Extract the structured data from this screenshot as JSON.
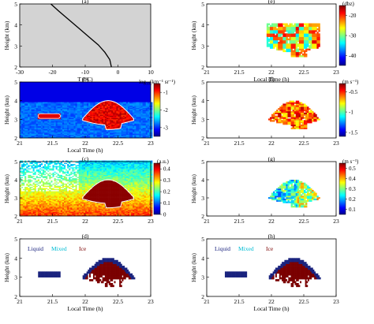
{
  "chart_data": [
    {
      "panel": "a",
      "label": "(a)",
      "type": "line",
      "xlabel": "T (°C)",
      "ylabel": "Height (km)",
      "xlim": [
        -30,
        10
      ],
      "ylim": [
        2,
        5
      ],
      "xticks": [
        "-30",
        "-20",
        "-10",
        "0",
        "10"
      ],
      "yticks": [
        "2",
        "3",
        "4",
        "5"
      ],
      "background": "#d3d3d3",
      "x": [
        -20.5,
        -18,
        -15,
        -12,
        -9,
        -6,
        -4,
        -2.5,
        -2
      ],
      "y": [
        5.0,
        4.65,
        4.25,
        3.85,
        3.45,
        3.05,
        2.7,
        2.35,
        2.0
      ]
    },
    {
      "panel": "b",
      "label": "(b)",
      "type": "heatmap",
      "xlabel": "Local Time (h)",
      "ylabel": "Height (km)",
      "xlim": [
        21,
        23
      ],
      "ylim": [
        2,
        5
      ],
      "xticks": [
        "21",
        "21.5",
        "22",
        "22.5",
        "23"
      ],
      "yticks": [
        "2",
        "3",
        "4",
        "5"
      ],
      "colorbar_title": "log₁₀(km⁻¹ sr⁻¹)",
      "colorbar_ticks": [
        "-1",
        "-2",
        "-3"
      ],
      "clim": [
        -3.5,
        -0.5
      ]
    },
    {
      "panel": "c",
      "label": "(c)",
      "type": "heatmap",
      "xlabel": "",
      "ylabel": "Height (km)",
      "xlim": [
        21,
        23
      ],
      "ylim": [
        2,
        5
      ],
      "xticks": [
        "21",
        "21.5",
        "22",
        "22.5",
        "23"
      ],
      "yticks": [
        "2",
        "3",
        "4",
        "5"
      ],
      "colorbar_title": "(a.u.)",
      "colorbar_ticks": [
        "0.4",
        "0.3",
        "0.2",
        "0.1",
        "0"
      ],
      "clim": [
        0,
        0.45
      ]
    },
    {
      "panel": "d",
      "label": "(d)",
      "type": "heatmap",
      "xlabel": "Local Time (h)",
      "ylabel": "Height (km)",
      "xlim": [
        21,
        23
      ],
      "ylim": [
        2,
        5
      ],
      "xticks": [
        "21",
        "21.5",
        "22",
        "22.5",
        "23"
      ],
      "yticks": [
        "2",
        "3",
        "4",
        "5"
      ],
      "categories": [
        {
          "name": "Liquid",
          "color": "#1a237e"
        },
        {
          "name": "Mixed",
          "color": "#00bcd4"
        },
        {
          "name": "Ice",
          "color": "#7b0000"
        }
      ]
    },
    {
      "panel": "e",
      "label": "(e)",
      "type": "heatmap",
      "xlabel": "Local Time (h)",
      "ylabel": "Height (km)",
      "xlim": [
        21,
        23
      ],
      "ylim": [
        2,
        5
      ],
      "xticks": [
        "21",
        "21.5",
        "22",
        "22.5",
        "23"
      ],
      "yticks": [
        "2",
        "3",
        "4",
        "5"
      ],
      "colorbar_title": "(dbz)",
      "colorbar_ticks": [
        "-20",
        "-30",
        "-40"
      ],
      "clim": [
        -45,
        -15
      ]
    },
    {
      "panel": "f",
      "label": "(f)",
      "type": "heatmap",
      "xlabel": "",
      "ylabel": "Height (km)",
      "xlim": [
        21,
        23
      ],
      "ylim": [
        2,
        5
      ],
      "xticks": [
        "21",
        "21.5",
        "22",
        "22.5",
        "23"
      ],
      "yticks": [
        "2",
        "3",
        "4",
        "5"
      ],
      "colorbar_title": "(m s⁻¹)",
      "colorbar_ticks": [
        "-0.5",
        "-1",
        "-1.5"
      ],
      "clim": [
        -1.6,
        -0.3
      ]
    },
    {
      "panel": "g",
      "label": "(g)",
      "type": "heatmap",
      "xlabel": "",
      "ylabel": "Height (km)",
      "xlim": [
        21,
        23
      ],
      "ylim": [
        2,
        5
      ],
      "xticks": [
        "21",
        "21.5",
        "22",
        "22.5",
        "23"
      ],
      "yticks": [
        "2",
        "3",
        "4",
        "5"
      ],
      "colorbar_title": "(m s⁻¹)",
      "colorbar_ticks": [
        "0.5",
        "0.4",
        "0.3",
        "0.2",
        "0.1"
      ],
      "clim": [
        0.05,
        0.55
      ]
    },
    {
      "panel": "h",
      "label": "(h)",
      "type": "heatmap",
      "xlabel": "Local Time (h)",
      "ylabel": "Height (km)",
      "xlim": [
        21,
        23
      ],
      "ylim": [
        2,
        5
      ],
      "xticks": [
        "21",
        "21.5",
        "22",
        "22.5",
        "23"
      ],
      "yticks": [
        "2",
        "3",
        "4",
        "5"
      ],
      "categories": [
        {
          "name": "Liquid",
          "color": "#1a237e"
        },
        {
          "name": "Mixed",
          "color": "#00bcd4"
        },
        {
          "name": "Ice",
          "color": "#7b0000"
        }
      ]
    }
  ]
}
